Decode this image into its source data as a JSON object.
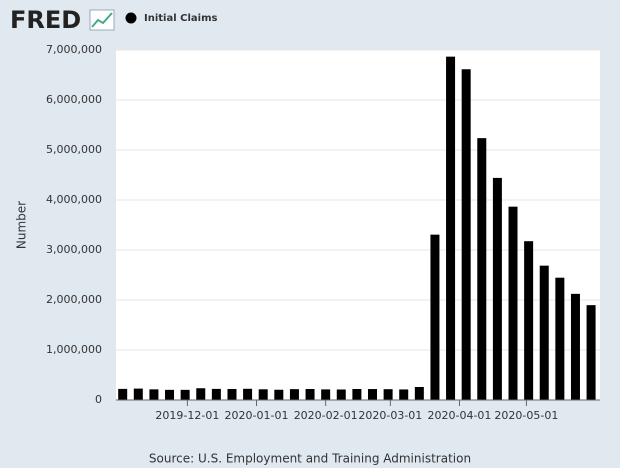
{
  "chart_data": {
    "type": "bar",
    "brand": "FRED",
    "series": [
      {
        "name": "Initial Claims",
        "color": "#000000",
        "values": [
          222000,
          228000,
          213000,
          203000,
          203000,
          235000,
          222000,
          220000,
          224000,
          214000,
          205000,
          217000,
          220000,
          212000,
          210000,
          220000,
          219000,
          216000,
          211000,
          260000,
          3307000,
          6867000,
          6615000,
          5237000,
          4442000,
          3867000,
          3176000,
          2687000,
          2446000,
          2123000,
          1897000
        ]
      }
    ],
    "x": [
      "2019-11-02",
      "2019-11-09",
      "2019-11-16",
      "2019-11-23",
      "2019-11-30",
      "2019-12-07",
      "2019-12-14",
      "2019-12-21",
      "2019-12-28",
      "2020-01-04",
      "2020-01-11",
      "2020-01-18",
      "2020-01-25",
      "2020-02-01",
      "2020-02-08",
      "2020-02-15",
      "2020-02-22",
      "2020-02-29",
      "2020-03-07",
      "2020-03-14",
      "2020-03-21",
      "2020-03-28",
      "2020-04-04",
      "2020-04-11",
      "2020-04-18",
      "2020-04-25",
      "2020-05-02",
      "2020-05-09",
      "2020-05-16",
      "2020-05-23",
      "2020-05-30"
    ],
    "xlim": [
      "2019-10-30",
      "2020-06-03"
    ],
    "xticks": [
      "2019-12-01",
      "2020-01-01",
      "2020-02-01",
      "2020-03-01",
      "2020-04-01",
      "2020-05-01"
    ],
    "ylabel": "Number",
    "ylim": [
      0,
      7000000
    ],
    "yticks": [
      0,
      {
        "value": 1000000,
        "label": "1,000,000"
      },
      {
        "value": 2000000,
        "label": "2,000,000"
      },
      {
        "value": 3000000,
        "label": "3,000,000"
      },
      {
        "value": 4000000,
        "label": "4,000,000"
      },
      {
        "value": 5000000,
        "label": "5,000,000"
      },
      {
        "value": 6000000,
        "label": "6,000,000"
      },
      {
        "value": 7000000,
        "label": "7,000,000"
      }
    ],
    "grid": true,
    "source": "Source: U.S. Employment and Training Administration"
  }
}
